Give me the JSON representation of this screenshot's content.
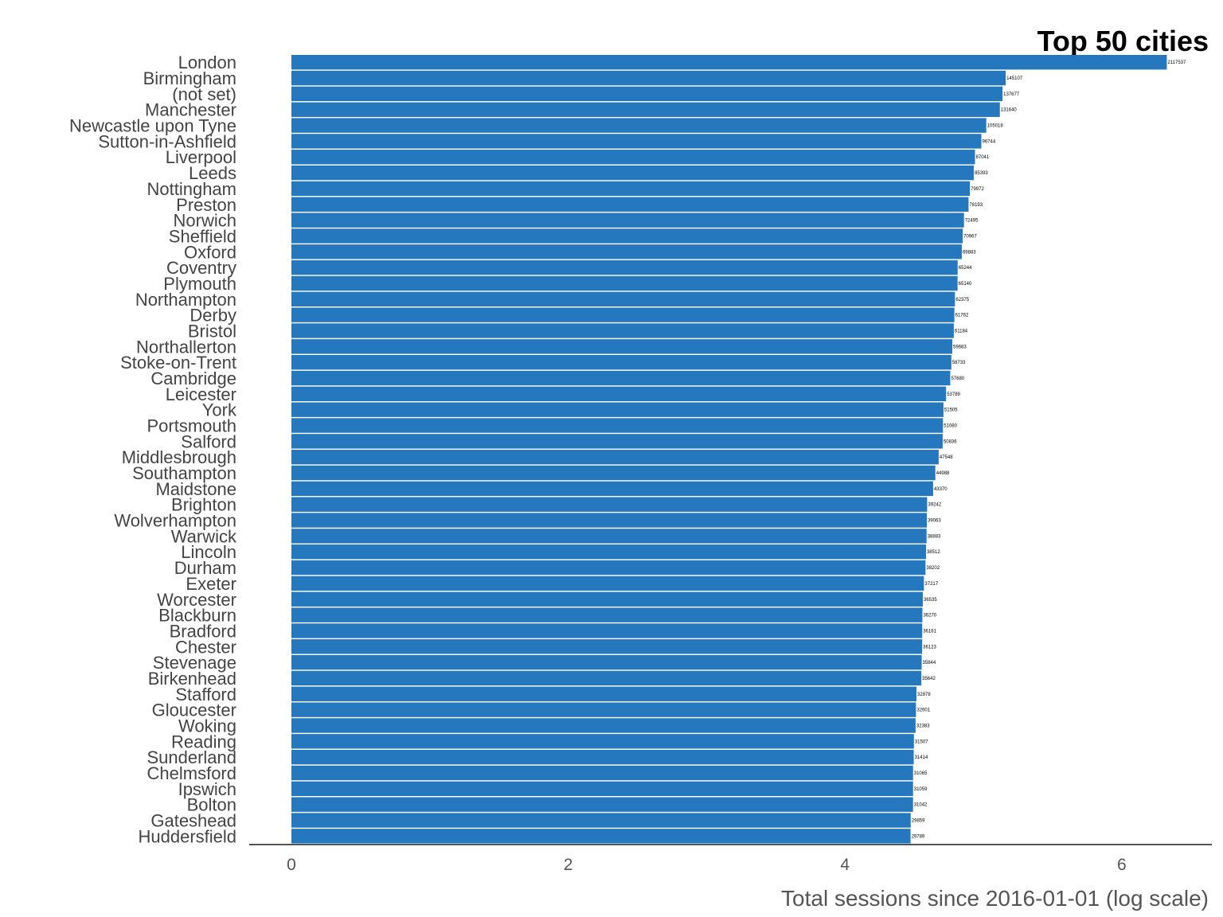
{
  "chart_data": {
    "type": "bar",
    "orientation": "horizontal",
    "title": "Top 50  cities",
    "xlabel": "Total sessions since 2016-01-01 (log scale)",
    "ylabel": "",
    "x_scale": "log10",
    "xlim": [
      0,
      6.3
    ],
    "xticks": [
      0,
      2,
      4,
      6
    ],
    "grid": false,
    "bar_color": "#2678be",
    "axis_color": "#555555",
    "categories": [
      "London",
      "Birmingham",
      "(not set)",
      "Manchester",
      "Newcastle upon Tyne",
      "Sutton-in-Ashfield",
      "Liverpool",
      "Leeds",
      "Nottingham",
      "Preston",
      "Norwich",
      "Sheffield",
      "Oxford",
      "Coventry",
      "Plymouth",
      "Northampton",
      "Derby",
      "Bristol",
      "Northallerton",
      "Stoke-on-Trent",
      "Cambridge",
      "Leicester",
      "York",
      "Portsmouth",
      "Salford",
      "Middlesbrough",
      "Southampton",
      "Maidstone",
      "Brighton",
      "Wolverhampton",
      "Warwick",
      "Lincoln",
      "Durham",
      "Exeter",
      "Worcester",
      "Blackburn",
      "Bradford",
      "Chester",
      "Stevenage",
      "Birkenhead",
      "Stafford",
      "Gloucester",
      "Woking",
      "Reading",
      "Sunderland",
      "Chelmsford",
      "Ipswich",
      "Bolton",
      "Gateshead",
      "Huddersfield"
    ],
    "values": [
      2117537,
      145107,
      137677,
      131640,
      105018,
      96744,
      87041,
      85393,
      79972,
      78193,
      72495,
      70967,
      69883,
      65244,
      65140,
      62375,
      61762,
      61184,
      59683,
      58733,
      57680,
      53789,
      51505,
      51080,
      50836,
      47548,
      44988,
      43370,
      39242,
      39063,
      38883,
      38512,
      38202,
      37217,
      36535,
      36270,
      36161,
      36123,
      35844,
      35642,
      32878,
      32601,
      32383,
      31507,
      31414,
      31065,
      31059,
      31042,
      29859,
      29789
    ]
  }
}
